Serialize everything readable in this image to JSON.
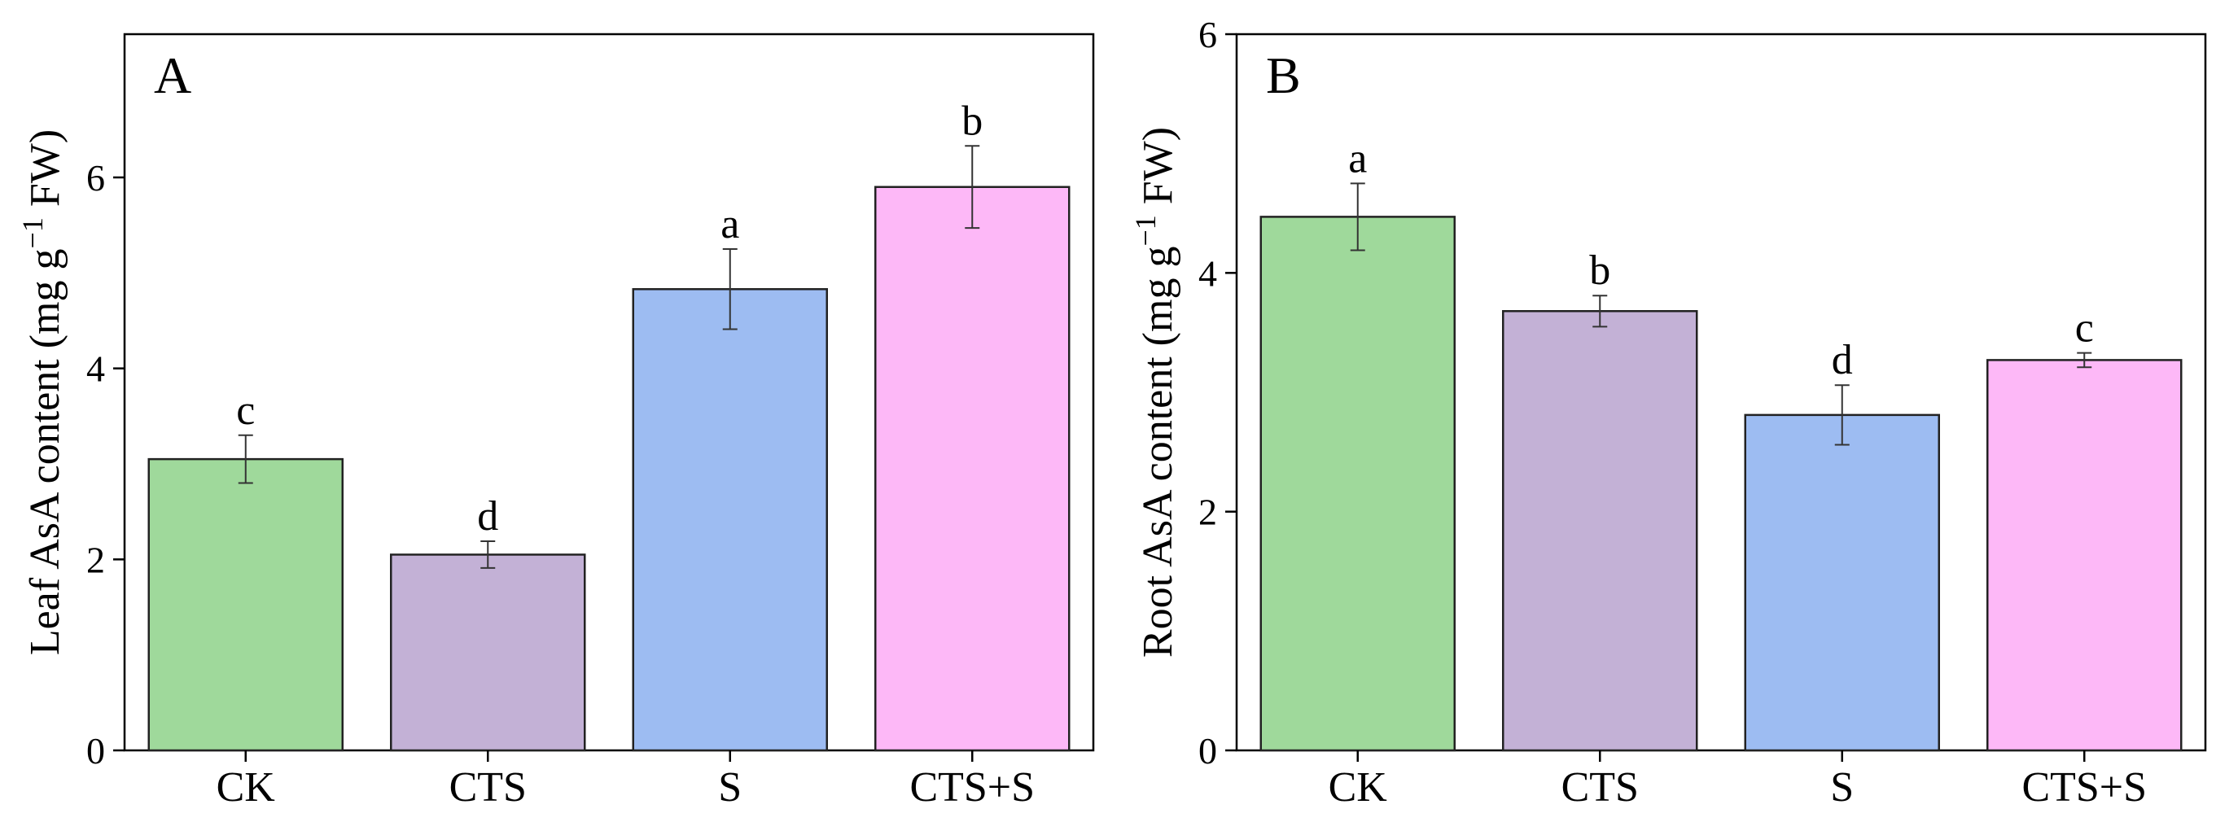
{
  "chart_data": [
    {
      "type": "bar",
      "panel_label": "A",
      "ylabel_prefix": "Leaf AsA content (mg g",
      "ylabel_sup": "−1",
      "ylabel_suffix": " FW)",
      "ylim": [
        0,
        7.5
      ],
      "yticks": [
        0,
        2,
        4,
        6
      ],
      "categories": [
        "CK",
        "CTS",
        "S",
        "CTS+S"
      ],
      "values": [
        3.05,
        2.05,
        4.83,
        5.9
      ],
      "errors": [
        0.25,
        0.14,
        0.42,
        0.43
      ],
      "significance": [
        "c",
        "d",
        "a",
        "b"
      ],
      "colors": [
        "#9fd99b",
        "#c3b1d6",
        "#9dbcf2",
        "#fdb8f7"
      ]
    },
    {
      "type": "bar",
      "panel_label": "B",
      "ylabel_prefix": "Root AsA content (mg g",
      "ylabel_sup": "−1",
      "ylabel_suffix": " FW)",
      "ylim": [
        0,
        6
      ],
      "yticks": [
        0,
        2,
        4,
        6
      ],
      "categories": [
        "CK",
        "CTS",
        "S",
        "CTS+S"
      ],
      "values": [
        4.47,
        3.68,
        2.81,
        3.27
      ],
      "errors": [
        0.28,
        0.13,
        0.25,
        0.06
      ],
      "significance": [
        "a",
        "b",
        "d",
        "c"
      ],
      "colors": [
        "#9fd99b",
        "#c3b1d6",
        "#9dbcf2",
        "#fdb8f7"
      ]
    }
  ]
}
